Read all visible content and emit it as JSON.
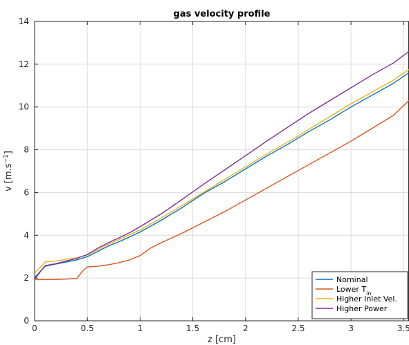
{
  "chart_data": {
    "type": "line",
    "title": "gas velocity profile",
    "xlabel": "z [cm]",
    "ylabel_base": "v [m.s",
    "ylabel_sup": "−1",
    "ylabel_end": "]",
    "xlim": [
      0,
      3.55
    ],
    "ylim": [
      0,
      14
    ],
    "xticks": [
      0,
      0.5,
      1,
      1.5,
      2,
      2.5,
      3,
      3.5
    ],
    "xtick_labels": [
      "0",
      "0.5",
      "1",
      "1.5",
      "2",
      "2.5",
      "3",
      "3.5"
    ],
    "yticks": [
      0,
      2,
      4,
      6,
      8,
      10,
      12,
      14
    ],
    "ytick_labels": [
      "0",
      "2",
      "4",
      "6",
      "8",
      "10",
      "12",
      "14"
    ],
    "grid": true,
    "legend_position": "bottom-right",
    "series": [
      {
        "name": "Nominal",
        "color": "#0072BD",
        "points": [
          [
            0,
            2.02
          ],
          [
            0.1,
            2.55
          ],
          [
            0.2,
            2.65
          ],
          [
            0.3,
            2.75
          ],
          [
            0.4,
            2.85
          ],
          [
            0.5,
            3.0
          ],
          [
            0.6,
            3.25
          ],
          [
            0.7,
            3.5
          ],
          [
            0.8,
            3.7
          ],
          [
            0.9,
            3.92
          ],
          [
            1.0,
            4.15
          ],
          [
            1.2,
            4.7
          ],
          [
            1.4,
            5.3
          ],
          [
            1.6,
            5.95
          ],
          [
            1.8,
            6.5
          ],
          [
            2.0,
            7.1
          ],
          [
            2.2,
            7.7
          ],
          [
            2.4,
            8.25
          ],
          [
            2.6,
            8.85
          ],
          [
            2.8,
            9.4
          ],
          [
            3.0,
            10.0
          ],
          [
            3.2,
            10.55
          ],
          [
            3.4,
            11.1
          ],
          [
            3.55,
            11.6
          ]
        ]
      },
      {
        "name": "Lower T",
        "name_sub": "in",
        "color": "#D95319",
        "points": [
          [
            0,
            1.92
          ],
          [
            0.2,
            1.93
          ],
          [
            0.3,
            1.95
          ],
          [
            0.4,
            1.98
          ],
          [
            0.45,
            2.3
          ],
          [
            0.5,
            2.52
          ],
          [
            0.6,
            2.55
          ],
          [
            0.7,
            2.62
          ],
          [
            0.8,
            2.72
          ],
          [
            0.9,
            2.85
          ],
          [
            1.0,
            3.05
          ],
          [
            1.1,
            3.4
          ],
          [
            1.2,
            3.65
          ],
          [
            1.4,
            4.1
          ],
          [
            1.6,
            4.6
          ],
          [
            1.8,
            5.1
          ],
          [
            2.0,
            5.65
          ],
          [
            2.2,
            6.2
          ],
          [
            2.4,
            6.75
          ],
          [
            2.6,
            7.3
          ],
          [
            2.8,
            7.85
          ],
          [
            3.0,
            8.4
          ],
          [
            3.2,
            9.0
          ],
          [
            3.4,
            9.6
          ],
          [
            3.55,
            10.3
          ]
        ]
      },
      {
        "name": "Higher Inlet Vel.",
        "color": "#EDB120",
        "points": [
          [
            0,
            2.22
          ],
          [
            0.1,
            2.75
          ],
          [
            0.2,
            2.8
          ],
          [
            0.3,
            2.88
          ],
          [
            0.4,
            2.95
          ],
          [
            0.5,
            3.08
          ],
          [
            0.6,
            3.33
          ],
          [
            0.7,
            3.58
          ],
          [
            0.8,
            3.8
          ],
          [
            0.9,
            4.02
          ],
          [
            1.0,
            4.25
          ],
          [
            1.2,
            4.8
          ],
          [
            1.4,
            5.4
          ],
          [
            1.6,
            6.0
          ],
          [
            1.8,
            6.6
          ],
          [
            2.0,
            7.2
          ],
          [
            2.2,
            7.8
          ],
          [
            2.4,
            8.35
          ],
          [
            2.6,
            8.95
          ],
          [
            2.8,
            9.55
          ],
          [
            3.0,
            10.15
          ],
          [
            3.2,
            10.7
          ],
          [
            3.4,
            11.25
          ],
          [
            3.55,
            11.75
          ]
        ]
      },
      {
        "name": "Higher Power",
        "color": "#7E2F8E",
        "points": [
          [
            0,
            1.95
          ],
          [
            0.1,
            2.58
          ],
          [
            0.2,
            2.67
          ],
          [
            0.3,
            2.8
          ],
          [
            0.4,
            2.92
          ],
          [
            0.5,
            3.1
          ],
          [
            0.6,
            3.4
          ],
          [
            0.7,
            3.65
          ],
          [
            0.8,
            3.88
          ],
          [
            0.9,
            4.12
          ],
          [
            1.0,
            4.4
          ],
          [
            1.2,
            5.0
          ],
          [
            1.4,
            5.68
          ],
          [
            1.6,
            6.38
          ],
          [
            1.8,
            7.05
          ],
          [
            2.0,
            7.72
          ],
          [
            2.2,
            8.4
          ],
          [
            2.4,
            9.05
          ],
          [
            2.6,
            9.7
          ],
          [
            2.8,
            10.3
          ],
          [
            3.0,
            10.9
          ],
          [
            3.2,
            11.5
          ],
          [
            3.4,
            12.05
          ],
          [
            3.55,
            12.6
          ]
        ]
      }
    ]
  }
}
